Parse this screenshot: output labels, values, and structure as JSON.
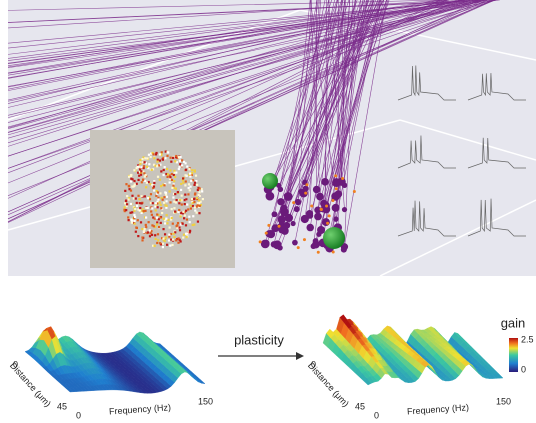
{
  "arrow_label": "plasticity",
  "colorbar": {
    "title": "gain",
    "max": "2.5",
    "min": "0"
  },
  "surfaces": [
    {
      "distance_axis": {
        "label": "Distance (μm)",
        "start": "0",
        "end": "45"
      },
      "frequency_axis": {
        "label": "Frequency (Hz)",
        "start": "0",
        "end": "150"
      }
    },
    {
      "distance_axis": {
        "label": "Distance (μm)",
        "start": "0",
        "end": "45"
      },
      "frequency_axis": {
        "label": "Frequency (Hz)",
        "start": "0",
        "end": "150"
      }
    }
  ]
}
